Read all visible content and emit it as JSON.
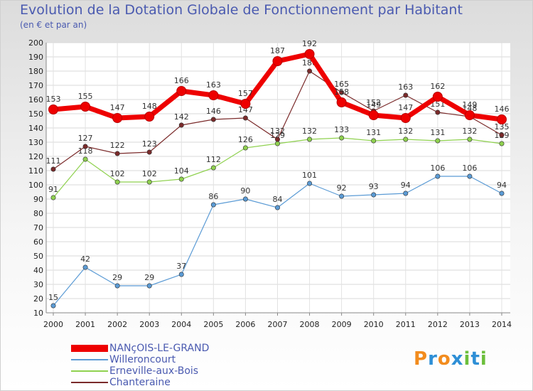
{
  "header": {
    "title": "Evolution de la Dotation Globale de Fonctionnement par Habitant",
    "subtitle": "(en € et par an)"
  },
  "brand": {
    "letters": [
      "P",
      "r",
      "o",
      "x",
      "i",
      "t",
      "i"
    ],
    "colors": [
      "#f28c1e",
      "#2e8fd6",
      "#f28c1e",
      "#2e8fd6",
      "#6cbf3c",
      "#2e8fd6",
      "#6cbf3c"
    ]
  },
  "chart_data": {
    "type": "line",
    "title": "Evolution de la Dotation Globale de Fonctionnement par Habitant",
    "subtitle": "(en € et par an)",
    "x": [
      "2000",
      "2001",
      "2002",
      "2003",
      "2004",
      "2005",
      "2006",
      "2007",
      "2008",
      "2009",
      "2010",
      "2011",
      "2012",
      "2013",
      "2014"
    ],
    "ylim": [
      10,
      200
    ],
    "y_ticks": [
      10,
      20,
      30,
      40,
      50,
      60,
      70,
      80,
      90,
      100,
      110,
      120,
      130,
      140,
      150,
      160,
      170,
      180,
      190,
      200
    ],
    "grid": true,
    "legend_position": "bottom-left",
    "series": [
      {
        "name": "NANçOIS-LE-GRAND",
        "color": "#ee0000",
        "values": [
          153,
          155,
          147,
          148,
          166,
          163,
          157,
          187,
          192,
          158,
          149,
          147,
          162,
          149,
          146
        ],
        "labels": [
          "153",
          "155",
          "147",
          "148",
          "166",
          "163",
          "157",
          "187",
          "192",
          "158",
          "149",
          "147",
          "162",
          "149",
          "146"
        ]
      },
      {
        "name": "Willeroncourt",
        "color": "#5b9bd5",
        "values": [
          15,
          42,
          29,
          29,
          37,
          86,
          90,
          84,
          101,
          92,
          93,
          94,
          106,
          106,
          94
        ],
        "labels": [
          "15",
          "42",
          "29",
          "29",
          "37",
          "86",
          "90",
          "84",
          "101",
          "92",
          "93",
          "94",
          "106",
          "106",
          "94"
        ]
      },
      {
        "name": "Erneville-aux-Bois",
        "color": "#8fd14f",
        "values": [
          91,
          118,
          102,
          102,
          104,
          112,
          126,
          129,
          132,
          133,
          131,
          132,
          131,
          132,
          129
        ],
        "labels": [
          "91",
          "118",
          "102",
          "102",
          "104",
          "112",
          "126",
          "129",
          "132",
          "133",
          "131",
          "132",
          "131",
          "132",
          "129"
        ]
      },
      {
        "name": "Chanteraine",
        "color": "#7b2b2b",
        "values": [
          111,
          127,
          122,
          123,
          142,
          146,
          147,
          132,
          180,
          165,
          152,
          163,
          151,
          148,
          135
        ],
        "labels": [
          "111",
          "127",
          "122",
          "123",
          "142",
          "146",
          "147",
          "132",
          "180",
          "165",
          "152",
          "163",
          "151",
          "148",
          "135"
        ]
      }
    ]
  }
}
